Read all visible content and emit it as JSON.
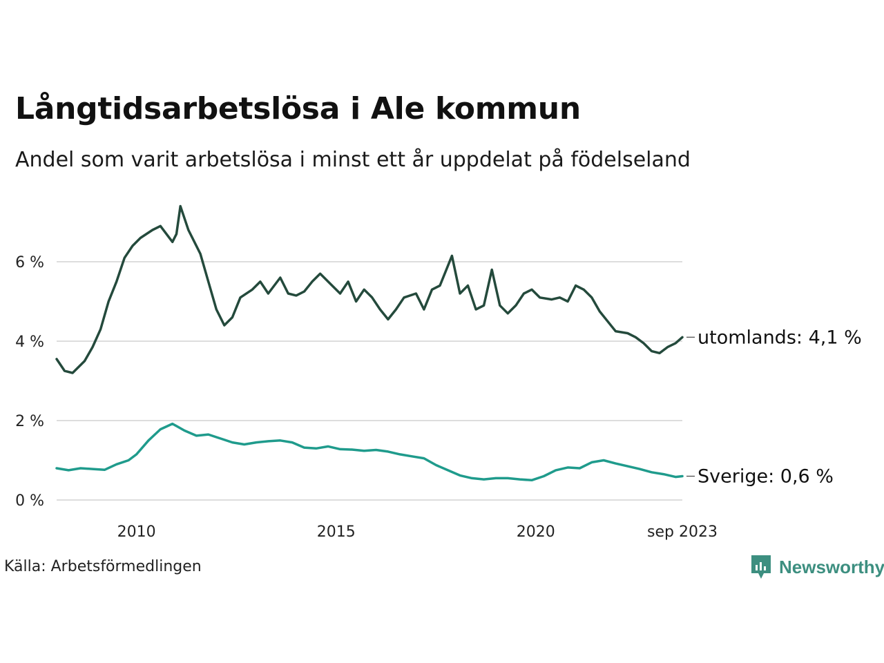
{
  "title": "Långtidsarbetslösa i Ale kommun",
  "subtitle": "Andel som varit arbetslösa i minst ett år uppdelat på födelseland",
  "source": "Källa: Arbetsförmedlingen",
  "brand": "Newsworthy",
  "colors": {
    "utomlands": "#244a3c",
    "sverige": "#1f9b8c",
    "grid": "#dddddd",
    "brand": "#3d8f80"
  },
  "chart_data": {
    "type": "line",
    "title": "Långtidsarbetslösa i Ale kommun",
    "xlabel": "",
    "ylabel": "",
    "xlim": [
      2008.0,
      2023.67
    ],
    "ylim": [
      0,
      7.5
    ],
    "y_ticks": [
      {
        "value": 0,
        "label": "0 %"
      },
      {
        "value": 2,
        "label": "2 %"
      },
      {
        "value": 4,
        "label": "4 %"
      },
      {
        "value": 6,
        "label": "6 %"
      }
    ],
    "x_ticks": [
      {
        "value": 2010,
        "label": "2010"
      },
      {
        "value": 2015,
        "label": "2015"
      },
      {
        "value": 2020,
        "label": "2020"
      },
      {
        "value": 2023.67,
        "label": "sep 2023"
      }
    ],
    "grid": true,
    "series": [
      {
        "name": "utomlands",
        "end_label": "utomlands: 4,1 %",
        "x": [
          2008.0,
          2008.2,
          2008.4,
          2008.7,
          2008.9,
          2009.1,
          2009.3,
          2009.5,
          2009.7,
          2009.9,
          2010.1,
          2010.4,
          2010.6,
          2010.9,
          2011.0,
          2011.1,
          2011.3,
          2011.6,
          2011.8,
          2012.0,
          2012.2,
          2012.4,
          2012.6,
          2012.9,
          2013.1,
          2013.3,
          2013.6,
          2013.8,
          2014.0,
          2014.2,
          2014.4,
          2014.6,
          2014.9,
          2015.1,
          2015.3,
          2015.5,
          2015.7,
          2015.9,
          2016.1,
          2016.3,
          2016.5,
          2016.7,
          2017.0,
          2017.2,
          2017.4,
          2017.6,
          2017.9,
          2018.1,
          2018.3,
          2018.5,
          2018.7,
          2018.9,
          2019.1,
          2019.3,
          2019.5,
          2019.7,
          2019.9,
          2020.1,
          2020.4,
          2020.6,
          2020.8,
          2021.0,
          2021.2,
          2021.4,
          2021.6,
          2021.8,
          2022.0,
          2022.3,
          2022.5,
          2022.7,
          2022.9,
          2023.1,
          2023.3,
          2023.5,
          2023.67
        ],
        "values": [
          3.55,
          3.25,
          3.2,
          3.5,
          3.85,
          4.3,
          5.0,
          5.5,
          6.1,
          6.4,
          6.6,
          6.8,
          6.9,
          6.5,
          6.7,
          7.4,
          6.8,
          6.2,
          5.5,
          4.8,
          4.4,
          4.6,
          5.1,
          5.3,
          5.5,
          5.2,
          5.6,
          5.2,
          5.15,
          5.25,
          5.5,
          5.7,
          5.4,
          5.2,
          5.5,
          5.0,
          5.3,
          5.1,
          4.8,
          4.55,
          4.8,
          5.1,
          5.2,
          4.8,
          5.3,
          5.4,
          6.15,
          5.2,
          5.4,
          4.8,
          4.9,
          5.8,
          4.9,
          4.7,
          4.9,
          5.2,
          5.3,
          5.1,
          5.05,
          5.1,
          5.0,
          5.4,
          5.3,
          5.1,
          4.75,
          4.5,
          4.25,
          4.2,
          4.1,
          3.95,
          3.75,
          3.7,
          3.85,
          3.95,
          4.1
        ]
      },
      {
        "name": "Sverige",
        "end_label": "Sverige: 0,6 %",
        "x": [
          2008.0,
          2008.3,
          2008.6,
          2008.9,
          2009.2,
          2009.5,
          2009.8,
          2010.0,
          2010.3,
          2010.6,
          2010.9,
          2011.2,
          2011.5,
          2011.8,
          2012.1,
          2012.4,
          2012.7,
          2013.0,
          2013.3,
          2013.6,
          2013.9,
          2014.2,
          2014.5,
          2014.8,
          2015.1,
          2015.4,
          2015.7,
          2016.0,
          2016.3,
          2016.6,
          2016.9,
          2017.2,
          2017.5,
          2017.8,
          2018.1,
          2018.4,
          2018.7,
          2019.0,
          2019.3,
          2019.6,
          2019.9,
          2020.2,
          2020.5,
          2020.8,
          2021.1,
          2021.4,
          2021.7,
          2022.0,
          2022.3,
          2022.6,
          2022.9,
          2023.2,
          2023.5,
          2023.67
        ],
        "values": [
          0.8,
          0.75,
          0.8,
          0.78,
          0.76,
          0.9,
          1.0,
          1.15,
          1.5,
          1.78,
          1.92,
          1.75,
          1.62,
          1.65,
          1.55,
          1.45,
          1.4,
          1.45,
          1.48,
          1.5,
          1.45,
          1.32,
          1.3,
          1.35,
          1.28,
          1.27,
          1.24,
          1.26,
          1.22,
          1.15,
          1.1,
          1.05,
          0.88,
          0.75,
          0.62,
          0.55,
          0.52,
          0.55,
          0.55,
          0.52,
          0.5,
          0.6,
          0.75,
          0.82,
          0.8,
          0.95,
          1.0,
          0.92,
          0.85,
          0.78,
          0.7,
          0.65,
          0.58,
          0.6
        ]
      }
    ]
  }
}
